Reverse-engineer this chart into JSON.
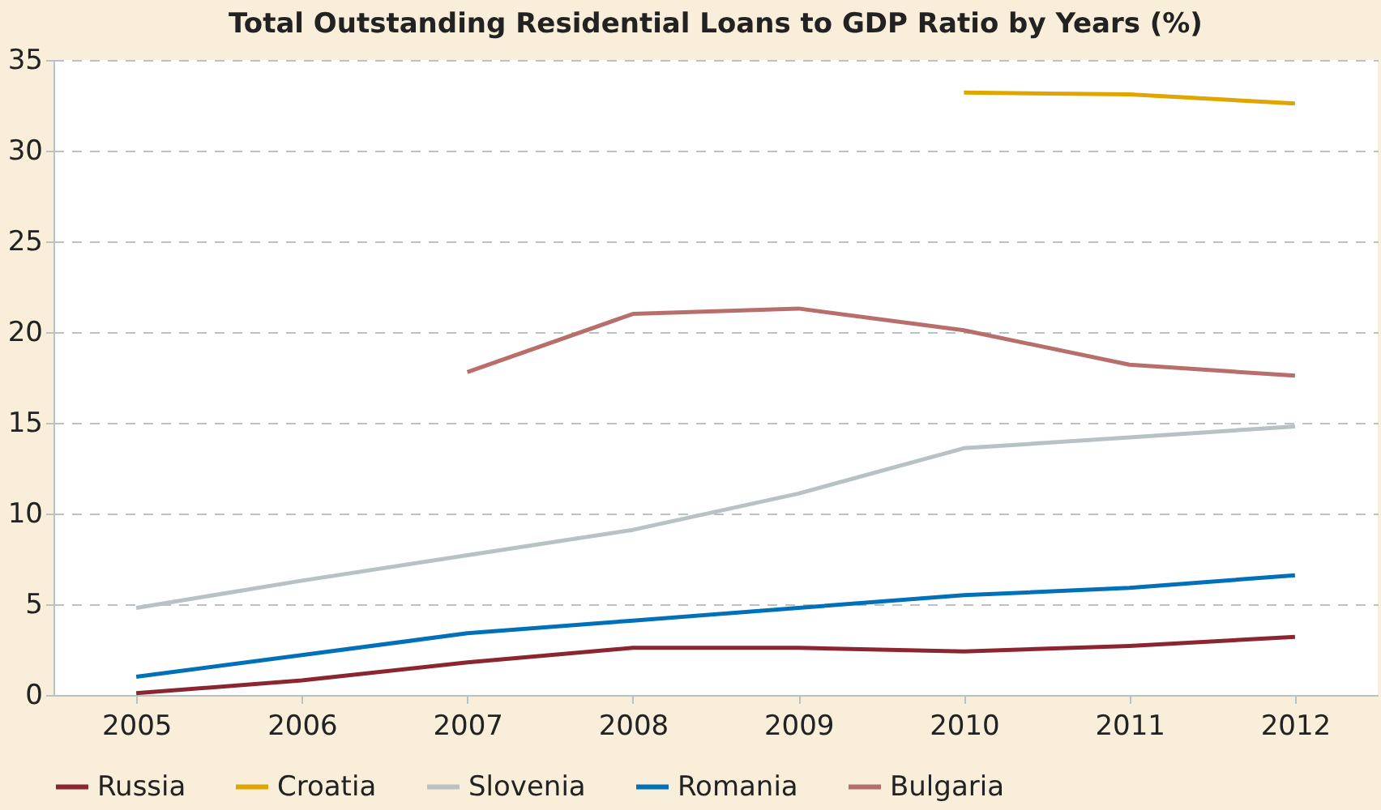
{
  "chart_data": {
    "type": "line",
    "title": "Total Outstanding Residential Loans to GDP Ratio by Years (%)",
    "categories": [
      "2005",
      "2006",
      "2007",
      "2008",
      "2009",
      "2010",
      "2011",
      "2012"
    ],
    "series": [
      {
        "name": "Russia",
        "color": "#8b2530",
        "values": [
          0.1,
          0.8,
          1.8,
          2.6,
          2.6,
          2.4,
          2.7,
          3.2
        ]
      },
      {
        "name": "Croatia",
        "color": "#e0a500",
        "values": [
          null,
          null,
          null,
          null,
          null,
          33.2,
          33.1,
          32.6
        ]
      },
      {
        "name": "Slovenia",
        "color": "#b8c2c4",
        "values": [
          4.8,
          6.3,
          7.7,
          9.1,
          11.1,
          13.6,
          14.2,
          14.8
        ]
      },
      {
        "name": "Romania",
        "color": "#0070b8",
        "values": [
          1.0,
          2.2,
          3.4,
          4.1,
          4.8,
          5.5,
          5.9,
          6.6
        ]
      },
      {
        "name": "Bulgaria",
        "color": "#b86e6a",
        "values": [
          null,
          null,
          17.8,
          21.0,
          21.3,
          20.1,
          18.2,
          17.6
        ]
      }
    ],
    "ylim": [
      0,
      35
    ],
    "yticks": [
      0,
      5,
      10,
      15,
      20,
      25,
      30,
      35
    ],
    "grid": "y",
    "legend": "bottom",
    "marker": "none",
    "line_style": "solid"
  }
}
